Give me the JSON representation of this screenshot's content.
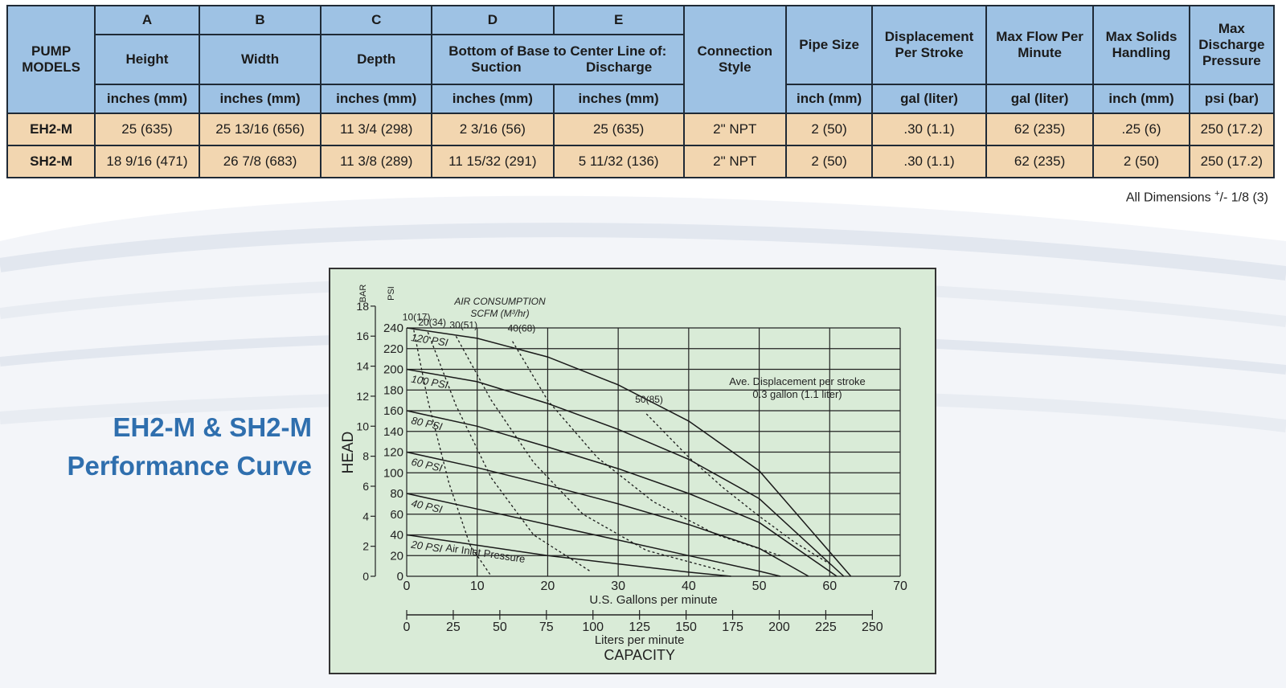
{
  "table": {
    "header_models": "PUMP MODELS",
    "header_letters": [
      "A",
      "B",
      "C",
      "D",
      "E"
    ],
    "header_dims": [
      "Height",
      "Width",
      "Depth"
    ],
    "header_bottom": "Bottom of Base to Center Line of:",
    "header_suction": "Suction",
    "header_discharge": "Discharge",
    "header_connection": "Connection Style",
    "header_pipe": "Pipe Size",
    "header_displacement": "Displacement Per Stroke",
    "header_maxflow": "Max Flow Per Minute",
    "header_solids": "Max Solids Handling",
    "header_pressure": "Max Discharge Pressure",
    "units": [
      "inches (mm)",
      "inches (mm)",
      "inches (mm)",
      "inches (mm)",
      "inches (mm)",
      "inch (mm)",
      "gal (liter)",
      "gal (liter)",
      "inch (mm)",
      "psi (bar)"
    ],
    "rows": [
      [
        "EH2-M",
        "25 (635)",
        "25 13/16 (656)",
        "11 3/4 (298)",
        "2 3/16 (56)",
        "25 (635)",
        "2\" NPT",
        "2 (50)",
        ".30 (1.1)",
        "62 (235)",
        ".25 (6)",
        "250 (17.2)"
      ],
      [
        "SH2-M",
        "18 9/16 (471)",
        "26 7/8 (683)",
        "11 3/8 (289)",
        "11 15/32 (291)",
        "5 11/32 (136)",
        "2\" NPT",
        "2 (50)",
        ".30 (1.1)",
        "62 (235)",
        "2 (50)",
        "250 (17.2)"
      ]
    ],
    "colors": {
      "header_bg": "#9ec2e4",
      "row_bg": "#f2d6b0",
      "border": "#1f2a36"
    }
  },
  "note": {
    "text": "All Dimensions ",
    "sup": "+",
    "rest": "/- 1/8 (3)"
  },
  "title": {
    "line1": "EH2-M & SH2-M",
    "line2": "Performance Curve",
    "color": "#2f6fae"
  },
  "chart_data": {
    "type": "line",
    "xlabel": "U.S. Gallons per minute",
    "ylabel": "HEAD",
    "xlabel2": "Liters per minute",
    "caption": "CAPACITY",
    "y_unit_bar": "BAR",
    "y_unit_psi": "PSI",
    "xlim": [
      0,
      70
    ],
    "ylim": [
      0,
      240
    ],
    "x_ticks": [
      0,
      10,
      20,
      30,
      40,
      50,
      60,
      70
    ],
    "y_ticks_psi": [
      0,
      20,
      40,
      60,
      80,
      100,
      120,
      140,
      160,
      180,
      200,
      220,
      240
    ],
    "y_ticks_bar": [
      0,
      2,
      4,
      6,
      8,
      10,
      12,
      14,
      16,
      18
    ],
    "liters_ticks": [
      0,
      25,
      50,
      75,
      100,
      125,
      150,
      175,
      200,
      225,
      250
    ],
    "grid": true,
    "background": "#d9ebd7",
    "annotation_air": [
      "AIR CONSUMPTION",
      "SCFM (M³/hr)"
    ],
    "annotation_disp": [
      "Ave. Displacement per stroke",
      "0.3 gallon (1.1 liter)"
    ],
    "inlet_label": "Air Inlet Pressure",
    "series": [
      {
        "name": "20 PSI",
        "x": [
          0,
          10,
          20,
          30,
          40,
          46
        ],
        "y": [
          40,
          30,
          20,
          12,
          4,
          0
        ]
      },
      {
        "name": "40 PSI",
        "x": [
          0,
          10,
          20,
          30,
          40,
          50,
          53
        ],
        "y": [
          80,
          65,
          50,
          35,
          20,
          5,
          0
        ]
      },
      {
        "name": "60 PSI",
        "x": [
          0,
          10,
          20,
          30,
          40,
          50,
          57
        ],
        "y": [
          120,
          105,
          88,
          70,
          50,
          27,
          0
        ]
      },
      {
        "name": "80 PSI",
        "x": [
          0,
          10,
          20,
          30,
          40,
          50,
          61
        ],
        "y": [
          160,
          145,
          125,
          104,
          80,
          52,
          0
        ]
      },
      {
        "name": "100 PSI",
        "x": [
          0,
          10,
          20,
          30,
          40,
          50,
          62
        ],
        "y": [
          200,
          188,
          167,
          142,
          113,
          75,
          0
        ]
      },
      {
        "name": "120 PSI",
        "x": [
          0,
          10,
          20,
          30,
          40,
          50,
          63
        ],
        "y": [
          240,
          230,
          212,
          185,
          150,
          102,
          0
        ]
      }
    ],
    "air_consumption": [
      {
        "label": "10(17)",
        "x": [
          1,
          3,
          6,
          9,
          12
        ],
        "y": [
          238,
          170,
          90,
          30,
          0
        ]
      },
      {
        "label": "20(34)",
        "x": [
          3,
          7,
          12,
          18,
          26
        ],
        "y": [
          236,
          165,
          95,
          40,
          5
        ]
      },
      {
        "label": "30(51)",
        "x": [
          7,
          12,
          18,
          25,
          34,
          45
        ],
        "y": [
          232,
          170,
          110,
          60,
          25,
          5
        ]
      },
      {
        "label": "40(68)",
        "x": [
          15,
          20,
          27,
          35,
          44,
          53
        ],
        "y": [
          227,
          170,
          115,
          72,
          40,
          20
        ]
      },
      {
        "label": "50(85)",
        "x": [
          34,
          40,
          45,
          50,
          55,
          60
        ],
        "y": [
          157,
          115,
          85,
          58,
          33,
          12
        ]
      }
    ]
  }
}
